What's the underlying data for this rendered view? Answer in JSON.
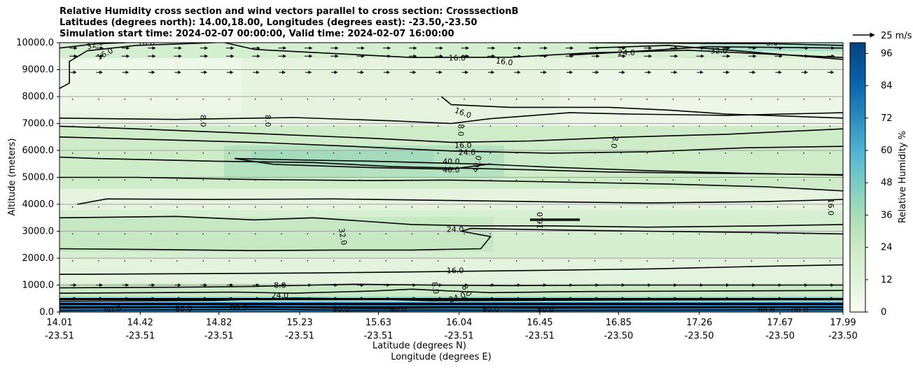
{
  "title_lines": [
    "Relative Humidity cross section and wind vectors parallel to cross section: CrosssectionB",
    "Latitudes (degrees north): 14.00,18.00, Longitudes (degrees east): -23.50,-23.50",
    "Simulation start time: 2024-02-07 00:00:00, Valid time: 2024-02-07 16:00:00"
  ],
  "chart_data": {
    "type": "heatmap",
    "description_of_fields": "filled contours of relative humidity with black contour lines and wind-vector arrows",
    "y_axis": {
      "label": "Altitude (meters)",
      "range": [
        0,
        10000
      ],
      "ticks": [
        "0.0",
        "1000.0",
        "2000.0",
        "3000.0",
        "4000.0",
        "5000.0",
        "6000.0",
        "7000.0",
        "8000.0",
        "9000.0",
        "10000.0"
      ],
      "grid": true
    },
    "x_axis": {
      "label_lat": "Latitude (degrees N)",
      "label_lon": "Longitude (degrees E)",
      "range_lat": [
        14.01,
        17.99
      ],
      "ticks": [
        {
          "lat": "14.01",
          "lon": "-23.51"
        },
        {
          "lat": "14.42",
          "lon": "-23.51"
        },
        {
          "lat": "14.82",
          "lon": "-23.51"
        },
        {
          "lat": "15.23",
          "lon": "-23.51"
        },
        {
          "lat": "15.63",
          "lon": "-23.51"
        },
        {
          "lat": "16.04",
          "lon": "-23.51"
        },
        {
          "lat": "16.45",
          "lon": "-23.51"
        },
        {
          "lat": "16.85",
          "lon": "-23.50"
        },
        {
          "lat": "17.26",
          "lon": "-23.50"
        },
        {
          "lat": "17.67",
          "lon": "-23.50"
        },
        {
          "lat": "17.99",
          "lon": "-23.50"
        }
      ]
    },
    "colorbar": {
      "label": "Relative Humidity %",
      "range": [
        0,
        100
      ],
      "ticks": [
        "0",
        "12",
        "24",
        "36",
        "48",
        "60",
        "72",
        "84",
        "96"
      ],
      "colormap": [
        "#f7fcf0",
        "#e0f3db",
        "#ccebc5",
        "#a8ddb5",
        "#7bccc4",
        "#4eb3d3",
        "#2b8cbe",
        "#0868ac",
        "#084081"
      ]
    },
    "vector_key": "25 m/s",
    "contour_levels_labeled": [
      "8.0",
      "16.0",
      "24.0",
      "32.0",
      "40.0",
      "80.0"
    ],
    "contour_labels": [
      {
        "text": "32.0",
        "lat": 14.19,
        "alt": 9940,
        "rot": -18
      },
      {
        "text": "16.0",
        "lat": 14.24,
        "alt": 9590,
        "rot": -28
      },
      {
        "text": "16.0",
        "lat": 14.45,
        "alt": 10000,
        "rot": 0
      },
      {
        "text": "16.0",
        "lat": 16.03,
        "alt": 9440,
        "rot": 0
      },
      {
        "text": "16.0",
        "lat": 16.27,
        "alt": 9300,
        "rot": 8
      },
      {
        "text": "24.0",
        "lat": 16.89,
        "alt": 9640,
        "rot": 0
      },
      {
        "text": "32.0",
        "lat": 17.36,
        "alt": 9700,
        "rot": 0
      },
      {
        "text": "8.0",
        "lat": 17.63,
        "alt": 10000,
        "rot": 0
      },
      {
        "text": "8.0",
        "lat": 14.74,
        "alt": 7100,
        "rot": 90
      },
      {
        "text": "8.0",
        "lat": 15.07,
        "alt": 7100,
        "rot": 90
      },
      {
        "text": "16.0",
        "lat": 16.06,
        "alt": 7400,
        "rot": 20
      },
      {
        "text": "8.0",
        "lat": 16.05,
        "alt": 6750,
        "rot": 90
      },
      {
        "text": "16.0",
        "lat": 16.06,
        "alt": 6200,
        "rot": 0
      },
      {
        "text": "24.0",
        "lat": 16.08,
        "alt": 5940,
        "rot": 0
      },
      {
        "text": "40.0",
        "lat": 16.0,
        "alt": 5600,
        "rot": 0
      },
      {
        "text": "40.0",
        "lat": 16.0,
        "alt": 5280,
        "rot": 0
      },
      {
        "text": "40.0",
        "lat": 16.13,
        "alt": 5500,
        "rot": -75
      },
      {
        "text": "8.0",
        "lat": 16.83,
        "alt": 6300,
        "rot": 100
      },
      {
        "text": "16.0",
        "lat": 17.93,
        "alt": 3900,
        "rot": 90
      },
      {
        "text": "16.0",
        "lat": 16.45,
        "alt": 3400,
        "rot": -90
      },
      {
        "text": "32.0",
        "lat": 15.45,
        "alt": 2800,
        "rot": 80
      },
      {
        "text": "24.0",
        "lat": 16.02,
        "alt": 3080,
        "rot": 0
      },
      {
        "text": "16.0",
        "lat": 16.02,
        "alt": 1550,
        "rot": 0
      },
      {
        "text": "8.0",
        "lat": 15.13,
        "alt": 1000,
        "rot": 0
      },
      {
        "text": "8.0",
        "lat": 15.92,
        "alt": 900,
        "rot": 80
      },
      {
        "text": "8.0",
        "lat": 16.08,
        "alt": 800,
        "rot": 60
      },
      {
        "text": "24.0",
        "lat": 16.03,
        "alt": 550,
        "rot": -20
      },
      {
        "text": "24.0",
        "lat": 15.13,
        "alt": 620,
        "rot": 0
      },
      {
        "text": "80.0",
        "lat": 14.28,
        "alt": 100,
        "rot": -10
      },
      {
        "text": "80.0",
        "lat": 14.64,
        "alt": 130,
        "rot": 0
      },
      {
        "text": "80.0",
        "lat": 14.92,
        "alt": 170,
        "rot": 0
      },
      {
        "text": "80.0",
        "lat": 15.44,
        "alt": 120,
        "rot": 0
      },
      {
        "text": "80.0",
        "lat": 15.73,
        "alt": 90,
        "rot": 0
      },
      {
        "text": "80.0",
        "lat": 16.2,
        "alt": 120,
        "rot": 0
      },
      {
        "text": "80.0",
        "lat": 16.48,
        "alt": 100,
        "rot": 0
      },
      {
        "text": "80.0",
        "lat": 17.6,
        "alt": 60,
        "rot": 0
      },
      {
        "text": "80.0",
        "lat": 17.77,
        "alt": 80,
        "rot": 0
      }
    ],
    "contour_lines": [
      {
        "level": 16,
        "points": [
          [
            14.01,
            8300
          ],
          [
            14.06,
            8500
          ],
          [
            14.06,
            9300
          ],
          [
            14.15,
            9700
          ],
          [
            14.4,
            9900
          ],
          [
            14.8,
            10000
          ]
        ]
      },
      {
        "level": 32,
        "points": [
          [
            14.01,
            9800
          ],
          [
            14.2,
            9960
          ],
          [
            14.35,
            10000
          ]
        ]
      },
      {
        "level": 16,
        "points": [
          [
            14.85,
            10000
          ],
          [
            15.0,
            9750
          ],
          [
            15.4,
            9600
          ],
          [
            15.8,
            9450
          ],
          [
            16.3,
            9460
          ],
          [
            16.7,
            9620
          ],
          [
            17.2,
            9720
          ],
          [
            17.6,
            9580
          ],
          [
            17.99,
            9450
          ]
        ]
      },
      {
        "level": 24,
        "points": [
          [
            16.6,
            9540
          ],
          [
            16.9,
            9660
          ],
          [
            17.3,
            9850
          ],
          [
            17.99,
            9800
          ]
        ]
      },
      {
        "level": 32,
        "points": [
          [
            16.7,
            9800
          ],
          [
            17.1,
            9900
          ],
          [
            17.4,
            9730
          ],
          [
            17.7,
            9550
          ],
          [
            17.99,
            9380
          ]
        ]
      },
      {
        "level": 8,
        "points": [
          [
            16.7,
            10000
          ],
          [
            17.2,
            9980
          ],
          [
            17.6,
            9970
          ],
          [
            17.99,
            9900
          ]
        ]
      },
      {
        "level": 16,
        "points": [
          [
            14.01,
            7200
          ],
          [
            14.6,
            7150
          ],
          [
            15.2,
            7220
          ],
          [
            15.7,
            7100
          ],
          [
            16.0,
            7000
          ],
          [
            16.2,
            7180
          ],
          [
            16.6,
            7400
          ],
          [
            16.9,
            7350
          ],
          [
            17.4,
            7300
          ],
          [
            17.99,
            7400
          ]
        ]
      },
      {
        "level": 16,
        "points": [
          [
            15.95,
            8000
          ],
          [
            16.0,
            7700
          ],
          [
            16.3,
            7600
          ],
          [
            16.8,
            7600
          ],
          [
            17.1,
            7500
          ],
          [
            17.4,
            7350
          ],
          [
            17.99,
            7200
          ]
        ]
      },
      {
        "level": 8,
        "points": [
          [
            14.01,
            6900
          ],
          [
            14.4,
            6800
          ],
          [
            15.1,
            6600
          ],
          [
            15.6,
            6450
          ],
          [
            16.0,
            6300
          ],
          [
            16.4,
            6350
          ],
          [
            16.9,
            6500
          ],
          [
            17.4,
            6600
          ],
          [
            17.99,
            6800
          ]
        ]
      },
      {
        "level": 16,
        "points": [
          [
            14.01,
            6500
          ],
          [
            14.5,
            6400
          ],
          [
            15.0,
            6300
          ],
          [
            15.5,
            6150
          ],
          [
            16.0,
            5980
          ],
          [
            16.5,
            5900
          ],
          [
            17.0,
            5950
          ],
          [
            17.5,
            6100
          ],
          [
            17.99,
            6150
          ]
        ]
      },
      {
        "level": 24,
        "points": [
          [
            14.01,
            5750
          ],
          [
            14.2,
            5700
          ],
          [
            14.8,
            5600
          ],
          [
            15.3,
            5550
          ],
          [
            15.7,
            5400
          ],
          [
            16.0,
            5350
          ],
          [
            16.4,
            5280
          ],
          [
            16.8,
            5200
          ],
          [
            17.3,
            5150
          ],
          [
            17.99,
            5100
          ]
        ]
      },
      {
        "level": 40,
        "points": [
          [
            14.9,
            5700
          ],
          [
            15.2,
            5650
          ],
          [
            15.6,
            5600
          ],
          [
            15.95,
            5530
          ],
          [
            16.2,
            5480
          ],
          [
            16.5,
            5380
          ],
          [
            17.0,
            5250
          ],
          [
            17.5,
            5150
          ],
          [
            17.99,
            5080
          ]
        ]
      },
      {
        "level": 40,
        "points": [
          [
            14.9,
            5700
          ],
          [
            15.1,
            5480
          ],
          [
            15.6,
            5360
          ],
          [
            16.0,
            5300
          ],
          [
            16.2,
            5500
          ]
        ]
      },
      {
        "level": 24,
        "points": [
          [
            14.01,
            5000
          ],
          [
            14.4,
            5000
          ],
          [
            15.0,
            4920
          ],
          [
            15.6,
            4880
          ],
          [
            16.0,
            4900
          ],
          [
            16.6,
            4820
          ],
          [
            17.1,
            4750
          ],
          [
            17.6,
            4650
          ],
          [
            17.99,
            4500
          ]
        ]
      },
      {
        "level": 16,
        "points": [
          [
            14.1,
            4000
          ],
          [
            14.25,
            4200
          ],
          [
            14.8,
            4180
          ],
          [
            15.4,
            4200
          ],
          [
            15.9,
            4150
          ],
          [
            16.4,
            4100
          ],
          [
            17.0,
            4050
          ],
          [
            17.6,
            4100
          ],
          [
            17.99,
            4180
          ]
        ]
      },
      {
        "level": 32,
        "points": [
          [
            14.01,
            3500
          ],
          [
            14.6,
            3550
          ],
          [
            15.0,
            3420
          ],
          [
            15.3,
            3500
          ],
          [
            15.6,
            3350
          ],
          [
            15.8,
            3250
          ],
          [
            16.1,
            3200
          ],
          [
            16.5,
            3200
          ],
          [
            17.0,
            3150
          ],
          [
            17.6,
            3200
          ],
          [
            17.99,
            3250
          ]
        ]
      },
      {
        "level": 24,
        "points": [
          [
            14.01,
            2350
          ],
          [
            14.5,
            2320
          ],
          [
            15.0,
            2280
          ],
          [
            15.4,
            2300
          ],
          [
            15.8,
            2300
          ],
          [
            16.15,
            2350
          ],
          [
            16.2,
            2800
          ],
          [
            16.05,
            3000
          ],
          [
            16.1,
            3100
          ],
          [
            16.5,
            3050
          ],
          [
            17.0,
            3000
          ],
          [
            17.6,
            2950
          ],
          [
            17.99,
            2900
          ]
        ]
      },
      {
        "level": 24,
        "points": [
          [
            16.4,
            3400
          ],
          [
            16.65,
            3400
          ],
          [
            16.65,
            3450
          ],
          [
            16.4,
            3450
          ]
        ]
      },
      {
        "level": 16,
        "points": [
          [
            14.01,
            1400
          ],
          [
            14.6,
            1420
          ],
          [
            15.3,
            1450
          ],
          [
            15.9,
            1500
          ],
          [
            16.5,
            1550
          ],
          [
            17.0,
            1600
          ],
          [
            17.6,
            1700
          ],
          [
            17.99,
            1750
          ]
        ]
      },
      {
        "level": 8,
        "points": [
          [
            14.01,
            900
          ],
          [
            14.6,
            920
          ],
          [
            15.0,
            950
          ],
          [
            15.3,
            1000
          ],
          [
            15.5,
            1030
          ],
          [
            15.9,
            1000
          ],
          [
            16.3,
            980
          ],
          [
            16.8,
            1000
          ],
          [
            17.4,
            1000
          ],
          [
            17.99,
            1000
          ]
        ]
      },
      {
        "level": 8,
        "points": [
          [
            14.01,
            700
          ],
          [
            14.5,
            720
          ],
          [
            14.9,
            740
          ],
          [
            15.2,
            700
          ],
          [
            15.6,
            780
          ],
          [
            15.8,
            850
          ],
          [
            16.0,
            780
          ],
          [
            16.2,
            720
          ],
          [
            16.7,
            760
          ],
          [
            17.3,
            780
          ],
          [
            17.99,
            800
          ]
        ]
      },
      {
        "level": 40,
        "points": [
          [
            14.01,
            400
          ],
          [
            14.8,
            430
          ],
          [
            15.2,
            520
          ],
          [
            15.6,
            480
          ],
          [
            15.9,
            420
          ],
          [
            16.3,
            430
          ],
          [
            17.0,
            450
          ],
          [
            17.99,
            460
          ]
        ]
      },
      {
        "level": 80,
        "points": [
          [
            14.01,
            150
          ],
          [
            14.5,
            170
          ],
          [
            15.0,
            210
          ],
          [
            15.3,
            160
          ],
          [
            15.6,
            130
          ],
          [
            16.0,
            170
          ],
          [
            16.4,
            150
          ],
          [
            17.0,
            160
          ],
          [
            17.99,
            180
          ]
        ]
      },
      {
        "level": 80,
        "points": [
          [
            14.01,
            60
          ],
          [
            14.6,
            80
          ],
          [
            15.1,
            100
          ],
          [
            15.5,
            60
          ],
          [
            15.9,
            70
          ],
          [
            16.4,
            60
          ],
          [
            17.2,
            70
          ],
          [
            17.99,
            90
          ]
        ]
      }
    ],
    "rh_field_notes": "values mostly 8-40%, a moist layer near 5000-6000 m (~40%), near-surface values above 80%"
  }
}
